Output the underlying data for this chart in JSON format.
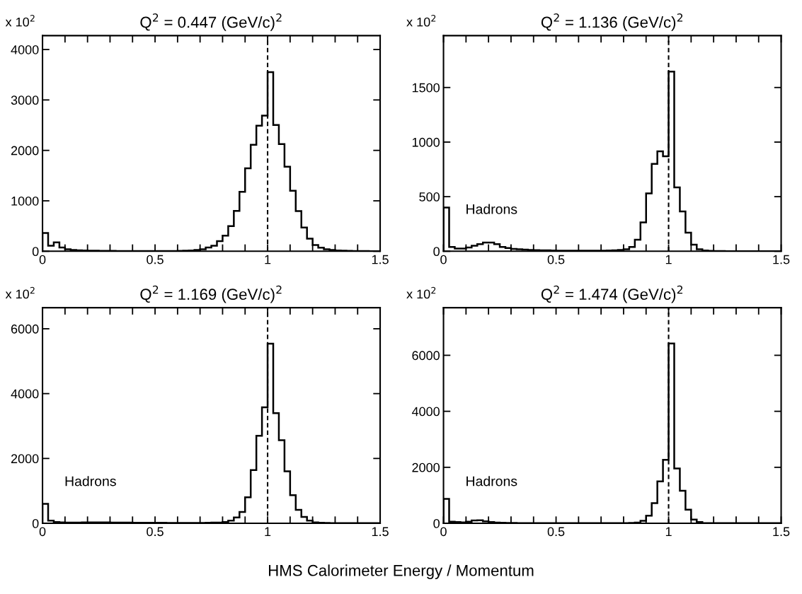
{
  "chart_data": [
    {
      "type": "histogram",
      "title": "Q$^{2}$ = 0.447 (GeV/c)$^{2}$",
      "color": "#000000",
      "bins": [
        0,
        0.025,
        0.05,
        0.075,
        0.1,
        0.125,
        0.15,
        0.175,
        0.2,
        0.225,
        0.25,
        0.275,
        0.3,
        0.325,
        0.35,
        0.375,
        0.4,
        0.425,
        0.45,
        0.475,
        0.5,
        0.525,
        0.55,
        0.575,
        0.6,
        0.625,
        0.65,
        0.675,
        0.7,
        0.725,
        0.75,
        0.775,
        0.8,
        0.825,
        0.85,
        0.875,
        0.9,
        0.925,
        0.95,
        0.975,
        1,
        1.025,
        1.05,
        1.075,
        1.1,
        1.125,
        1.15,
        1.175,
        1.2,
        1.225,
        1.25,
        1.275,
        1.3,
        1.325,
        1.35,
        1.375,
        1.4,
        1.425,
        1.45,
        1.475,
        1.5
      ],
      "values": [
        362,
        110,
        175,
        75,
        40,
        25,
        20,
        15,
        12,
        10,
        8,
        8,
        7,
        6,
        6,
        5,
        5,
        5,
        5,
        5,
        5,
        5,
        5,
        6,
        7,
        10,
        15,
        25,
        40,
        75,
        110,
        200,
        310,
        500,
        800,
        1180,
        1645,
        2110,
        2490,
        2690,
        3550,
        2505,
        2125,
        1675,
        1200,
        795,
        470,
        250,
        125,
        70,
        40,
        25,
        15,
        10,
        8,
        5,
        5,
        3,
        2,
        2
      ],
      "xlim": [
        0,
        1.5
      ],
      "ylim": [
        0,
        4275
      ],
      "xticks": [
        0,
        {
          "value": 0.1,
          "label": null
        },
        {
          "value": 0.2,
          "label": null
        },
        {
          "value": 0.3,
          "label": null
        },
        {
          "value": 0.4,
          "label": null
        },
        0.5,
        {
          "value": 0.6,
          "label": null
        },
        {
          "value": 0.7,
          "label": null
        },
        {
          "value": 0.8,
          "label": null
        },
        {
          "value": 0.9,
          "label": null
        },
        1,
        {
          "value": 1.1,
          "label": null
        },
        {
          "value": 1.2,
          "label": null
        },
        {
          "value": 1.3,
          "label": null
        },
        {
          "value": 1.4,
          "label": null
        },
        1.5
      ],
      "yticks": [
        0,
        1000,
        2000,
        3000,
        4000
      ],
      "ref_lines": [
        {
          "axis": "x",
          "value": 1,
          "color": "#000000",
          "line_style": "dashed"
        }
      ],
      "annotations": [
        "x 10$^{2}$"
      ]
    },
    {
      "type": "histogram",
      "title": "Q$^{2}$ = 1.136 (GeV/c)$^{2}$",
      "color": "#000000",
      "bins": [
        0,
        0.025,
        0.05,
        0.075,
        0.1,
        0.125,
        0.15,
        0.175,
        0.2,
        0.225,
        0.25,
        0.275,
        0.3,
        0.325,
        0.35,
        0.375,
        0.4,
        0.425,
        0.45,
        0.475,
        0.5,
        0.525,
        0.55,
        0.575,
        0.6,
        0.625,
        0.65,
        0.675,
        0.7,
        0.725,
        0.75,
        0.775,
        0.8,
        0.825,
        0.85,
        0.875,
        0.9,
        0.925,
        0.95,
        0.975,
        1,
        1.025,
        1.05,
        1.075,
        1.1,
        1.125,
        1.15,
        1.175,
        1.2,
        1.225,
        1.25,
        1.275,
        1.3,
        1.325,
        1.35,
        1.375,
        1.4,
        1.425,
        1.45,
        1.475,
        1.5
      ],
      "values": [
        400,
        40,
        25,
        25,
        35,
        50,
        65,
        80,
        80,
        65,
        40,
        30,
        22,
        18,
        15,
        12,
        10,
        8,
        8,
        7,
        6,
        5,
        5,
        5,
        5,
        5,
        5,
        5,
        6,
        7,
        8,
        12,
        18,
        40,
        105,
        265,
        530,
        800,
        915,
        870,
        1645,
        585,
        365,
        170,
        60,
        18,
        7,
        3,
        2,
        2,
        1,
        1,
        1,
        1,
        0,
        0,
        0,
        0,
        0,
        0
      ],
      "xlim": [
        0,
        1.5
      ],
      "ylim": [
        0,
        1975
      ],
      "xticks": [
        0,
        {
          "value": 0.1,
          "label": null
        },
        {
          "value": 0.2,
          "label": null
        },
        {
          "value": 0.3,
          "label": null
        },
        {
          "value": 0.4,
          "label": null
        },
        0.5,
        {
          "value": 0.6,
          "label": null
        },
        {
          "value": 0.7,
          "label": null
        },
        {
          "value": 0.8,
          "label": null
        },
        {
          "value": 0.9,
          "label": null
        },
        1,
        {
          "value": 1.1,
          "label": null
        },
        {
          "value": 1.2,
          "label": null
        },
        {
          "value": 1.3,
          "label": null
        },
        {
          "value": 1.4,
          "label": null
        },
        1.5
      ],
      "yticks": [
        0,
        500,
        1000,
        1500
      ],
      "ref_lines": [
        {
          "axis": "x",
          "value": 1,
          "color": "#000000",
          "line_style": "dashed"
        }
      ],
      "annotations": [
        "x 10$^{2}$",
        "Hadrons"
      ]
    },
    {
      "type": "histogram",
      "title": "Q$^{2}$ = 1.169 (GeV/c)$^{2}$",
      "color": "#000000",
      "xlabel": "HMS Calorimeter Energy / Momentum",
      "bins": [
        0,
        0.025,
        0.05,
        0.075,
        0.1,
        0.125,
        0.15,
        0.175,
        0.2,
        0.225,
        0.25,
        0.275,
        0.3,
        0.325,
        0.35,
        0.375,
        0.4,
        0.425,
        0.45,
        0.475,
        0.5,
        0.525,
        0.55,
        0.575,
        0.6,
        0.625,
        0.65,
        0.675,
        0.7,
        0.725,
        0.75,
        0.775,
        0.8,
        0.825,
        0.85,
        0.875,
        0.9,
        0.925,
        0.95,
        0.975,
        1,
        1.025,
        1.05,
        1.075,
        1.1,
        1.125,
        1.15,
        1.175,
        1.2,
        1.225,
        1.25,
        1.275,
        1.3,
        1.325,
        1.35,
        1.375,
        1.4,
        1.425,
        1.45,
        1.475,
        1.5
      ],
      "values": [
        600,
        80,
        40,
        30,
        25,
        25,
        25,
        30,
        30,
        30,
        30,
        30,
        25,
        25,
        20,
        20,
        15,
        15,
        15,
        15,
        15,
        15,
        10,
        10,
        10,
        10,
        10,
        10,
        10,
        15,
        20,
        25,
        40,
        80,
        180,
        350,
        805,
        1640,
        2700,
        3575,
        5540,
        3400,
        2565,
        1605,
        870,
        415,
        195,
        80,
        30,
        15,
        10,
        5,
        5,
        5,
        5,
        5,
        5,
        5,
        5,
        5
      ],
      "xlim": [
        0,
        1.5
      ],
      "ylim": [
        0,
        6650
      ],
      "xticks": [
        0,
        {
          "value": 0.1,
          "label": null
        },
        {
          "value": 0.2,
          "label": null
        },
        {
          "value": 0.3,
          "label": null
        },
        {
          "value": 0.4,
          "label": null
        },
        0.5,
        {
          "value": 0.6,
          "label": null
        },
        {
          "value": 0.7,
          "label": null
        },
        {
          "value": 0.8,
          "label": null
        },
        {
          "value": 0.9,
          "label": null
        },
        1,
        {
          "value": 1.1,
          "label": null
        },
        {
          "value": 1.2,
          "label": null
        },
        {
          "value": 1.3,
          "label": null
        },
        {
          "value": 1.4,
          "label": null
        },
        1.5
      ],
      "yticks": [
        0,
        2000,
        4000,
        6000
      ],
      "ref_lines": [
        {
          "axis": "x",
          "value": 1,
          "color": "#000000",
          "line_style": "dashed"
        }
      ],
      "annotations": [
        "x 10$^{2}$",
        "Hadrons"
      ]
    },
    {
      "type": "histogram",
      "title": "Q$^{2}$ = 1.474 (GeV/c)$^{2}$",
      "color": "#000000",
      "bins": [
        0,
        0.025,
        0.05,
        0.075,
        0.1,
        0.125,
        0.15,
        0.175,
        0.2,
        0.225,
        0.25,
        0.275,
        0.3,
        0.325,
        0.35,
        0.375,
        0.4,
        0.425,
        0.45,
        0.475,
        0.5,
        0.525,
        0.55,
        0.575,
        0.6,
        0.625,
        0.65,
        0.675,
        0.7,
        0.725,
        0.75,
        0.775,
        0.8,
        0.825,
        0.85,
        0.875,
        0.9,
        0.925,
        0.95,
        0.975,
        1,
        1.025,
        1.05,
        1.075,
        1.1,
        1.125,
        1.15,
        1.175,
        1.2,
        1.225,
        1.25,
        1.275,
        1.3,
        1.325,
        1.35,
        1.375,
        1.4,
        1.425,
        1.45,
        1.475,
        1.5
      ],
      "values": [
        870,
        60,
        45,
        35,
        60,
        100,
        110,
        70,
        45,
        25,
        20,
        15,
        15,
        10,
        10,
        10,
        10,
        10,
        10,
        10,
        10,
        10,
        10,
        10,
        10,
        10,
        10,
        10,
        10,
        10,
        10,
        10,
        10,
        15,
        25,
        90,
        270,
        720,
        1500,
        2270,
        6420,
        1960,
        1160,
        485,
        135,
        45,
        10,
        5,
        5,
        5,
        5,
        5,
        5,
        5,
        5,
        5,
        5,
        5,
        5,
        5
      ],
      "xlim": [
        0,
        1.5
      ],
      "ylim": [
        0,
        7700
      ],
      "xticks": [
        0,
        {
          "value": 0.1,
          "label": null
        },
        {
          "value": 0.2,
          "label": null
        },
        {
          "value": 0.3,
          "label": null
        },
        {
          "value": 0.4,
          "label": null
        },
        0.5,
        {
          "value": 0.6,
          "label": null
        },
        {
          "value": 0.7,
          "label": null
        },
        {
          "value": 0.8,
          "label": null
        },
        {
          "value": 0.9,
          "label": null
        },
        1,
        {
          "value": 1.1,
          "label": null
        },
        {
          "value": 1.2,
          "label": null
        },
        {
          "value": 1.3,
          "label": null
        },
        {
          "value": 1.4,
          "label": null
        },
        1.5
      ],
      "yticks": [
        0,
        2000,
        4000,
        6000
      ],
      "ref_lines": [
        {
          "axis": "x",
          "value": 1,
          "color": "#000000",
          "line_style": "dashed"
        }
      ],
      "annotations": [
        "x 10$^{2}$",
        "Hadrons"
      ]
    }
  ]
}
